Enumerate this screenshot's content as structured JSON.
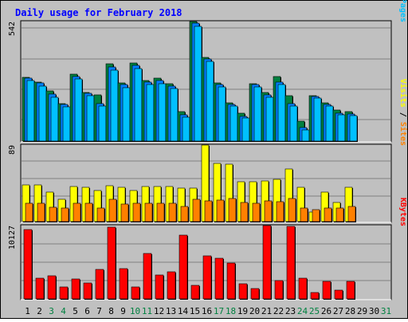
{
  "colors": {
    "frame": "#c0c0c0",
    "plot_bg": "#c0c0c0",
    "gridline": "#808080",
    "title": "#0000ff",
    "hits": "#008040",
    "files": "#0080ff",
    "pages": "#00c0ff",
    "visits": "#ffff00",
    "sites": "#ff8000",
    "kbytes": "#ff0000",
    "weekday_label": "#000000",
    "weekend_label": "#008040"
  },
  "chart_data": {
    "type": "bar",
    "title": "Daily usage for February 2018",
    "categories": [
      "1",
      "2",
      "3",
      "4",
      "5",
      "6",
      "7",
      "8",
      "9",
      "10",
      "11",
      "12",
      "13",
      "14",
      "15",
      "16",
      "17",
      "18",
      "19",
      "20",
      "21",
      "22",
      "23",
      "24",
      "25",
      "26",
      "27",
      "28",
      "29",
      "30",
      "31"
    ],
    "weekend_days": [
      "3",
      "4",
      "10",
      "11",
      "17",
      "18",
      "24",
      "25",
      "31"
    ],
    "panels": [
      {
        "name": "requests",
        "ymax_label": "542",
        "ylim": [
          0,
          542
        ],
        "axis_label_parts": [
          "Hits",
          "Files",
          "Pages"
        ],
        "series": [
          {
            "name": "Hits",
            "values": [
              290,
              268,
              226,
              171,
              304,
              222,
              210,
              350,
              265,
              355,
              276,
              285,
              261,
              132,
              542,
              380,
              265,
              172,
              127,
              261,
              220,
              291,
              207,
              92,
              207,
              172,
              140,
              135,
              null,
              null,
              null
            ]
          },
          {
            "name": "Files",
            "values": [
              287,
              262,
              212,
              165,
              294,
              215,
              170,
              335,
              255,
              343,
              269,
              273,
              250,
              120,
              535,
              372,
              257,
              168,
              113,
              255,
              210,
              266,
              170,
              60,
              202,
              167,
              128,
              123,
              null,
              null,
              null
            ]
          },
          {
            "name": "Pages",
            "values": [
              275,
              250,
              200,
              155,
              282,
              205,
              160,
              320,
              243,
              330,
              257,
              260,
              237,
              110,
              520,
              360,
              245,
              160,
              105,
              245,
              200,
              256,
              160,
              52,
              195,
              160,
              118,
              115,
              null,
              null,
              null
            ]
          }
        ]
      },
      {
        "name": "visitors",
        "ymax_label": "89",
        "ylim": [
          0,
          89
        ],
        "axis_label_parts": [
          "Visits",
          "Sites"
        ],
        "series": [
          {
            "name": "Visits",
            "values": [
              43,
              43,
              34,
              26,
              41,
              40,
              36,
              42,
              40,
              36,
              41,
              41,
              41,
              39,
              39,
              89,
              68,
              67,
              46,
              46,
              47,
              49,
              61,
              40,
              11,
              34,
              22,
              40,
              null,
              null,
              null
            ]
          },
          {
            "name": "Sites",
            "values": [
              21,
              21,
              17,
              16,
              21,
              21,
              16,
              26,
              20,
              21,
              21,
              21,
              21,
              18,
              26,
              24,
              25,
              27,
              22,
              21,
              24,
              23,
              27,
              16,
              14,
              16,
              16,
              18,
              null,
              null,
              null
            ]
          }
        ]
      },
      {
        "name": "volume",
        "ymax_label": "10127",
        "ylim": [
          0,
          10127
        ],
        "axis_label_parts": [
          "KBytes"
        ],
        "series": [
          {
            "name": "KBytes",
            "values": [
              9610,
              2830,
              3190,
              1620,
              2700,
              2250,
              4050,
              9930,
              4210,
              1680,
              6310,
              3250,
              3760,
              8810,
              1840,
              5960,
              5590,
              4990,
              2120,
              1390,
              10127,
              2490,
              10000,
              2870,
              900,
              2400,
              1250,
              2450,
              null,
              null,
              null
            ]
          }
        ]
      }
    ]
  }
}
